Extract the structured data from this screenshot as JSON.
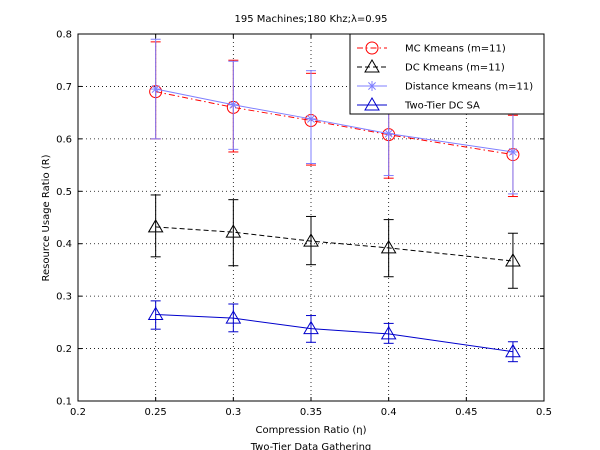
{
  "chart_data": {
    "type": "line",
    "title": "195 Machines;180 Khz;λ=0.95",
    "xlabel": "Compression Ratio (η)",
    "ylabel": "Resource Usage Ratio (R)",
    "caption": "Two-Tier Data Gathering",
    "xlim": [
      0.2,
      0.5
    ],
    "ylim": [
      0.1,
      0.8
    ],
    "xticks": [
      "0.2",
      "0.25",
      "0.3",
      "0.35",
      "0.4",
      "0.45",
      "0.5"
    ],
    "yticks": [
      "0.1",
      "0.2",
      "0.3",
      "0.4",
      "0.5",
      "0.6",
      "0.7",
      "0.8"
    ],
    "grid": true,
    "legend_position": "top-right",
    "x": [
      0.25,
      0.3,
      0.35,
      0.4,
      0.48
    ],
    "series": [
      {
        "name": "MC Kmeans (m=11)",
        "color": "#ff0000",
        "line_style": "dash-dot",
        "marker": "circle",
        "values": [
          0.69,
          0.66,
          0.635,
          0.608,
          0.57
        ],
        "error_low": [
          0.6,
          0.575,
          0.55,
          0.525,
          0.49
        ],
        "error_high": [
          0.785,
          0.75,
          0.725,
          0.695,
          0.645
        ]
      },
      {
        "name": "DC Kmeans (m=11)",
        "color": "#000000",
        "line_style": "dashed",
        "marker": "triangle",
        "values": [
          0.432,
          0.422,
          0.405,
          0.392,
          0.367
        ],
        "error_low": [
          0.375,
          0.358,
          0.36,
          0.337,
          0.315
        ],
        "error_high": [
          0.493,
          0.484,
          0.452,
          0.446,
          0.42
        ]
      },
      {
        "name": "Distance kmeans (m=11)",
        "color": "#7f7fff",
        "line_style": "solid",
        "marker": "asterisk",
        "values": [
          0.695,
          0.665,
          0.638,
          0.61,
          0.575
        ],
        "error_low": [
          0.6,
          0.58,
          0.553,
          0.53,
          0.495
        ],
        "error_high": [
          0.79,
          0.748,
          0.73,
          0.71,
          0.65
        ]
      },
      {
        "name": "Two-Tier DC SA",
        "color": "#0000cc",
        "line_style": "solid",
        "marker": "triangle",
        "values": [
          0.265,
          0.258,
          0.238,
          0.228,
          0.194
        ],
        "error_low": [
          0.237,
          0.232,
          0.212,
          0.21,
          0.175
        ],
        "error_high": [
          0.291,
          0.285,
          0.263,
          0.248,
          0.213
        ]
      }
    ]
  }
}
